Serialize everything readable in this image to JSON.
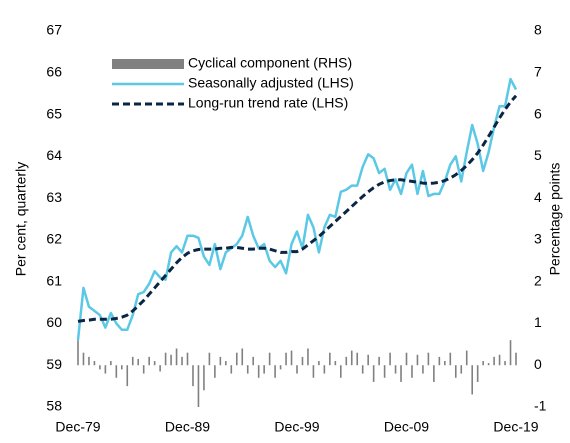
{
  "chart_data": {
    "type": "line",
    "categories": [
      "Dec-79",
      null,
      null,
      null,
      null,
      null,
      null,
      null,
      null,
      null,
      null,
      null,
      null,
      null,
      null,
      null,
      null,
      null,
      null,
      null,
      "Dec-89",
      null,
      null,
      null,
      null,
      null,
      null,
      null,
      null,
      null,
      null,
      null,
      null,
      null,
      null,
      null,
      null,
      null,
      null,
      null,
      "Dec-99",
      null,
      null,
      null,
      null,
      null,
      null,
      null,
      null,
      null,
      null,
      null,
      null,
      null,
      null,
      null,
      null,
      null,
      null,
      null,
      "Dec-09",
      null,
      null,
      null,
      null,
      null,
      null,
      null,
      null,
      null,
      null,
      null,
      null,
      null,
      null,
      null,
      null,
      null,
      null,
      null,
      "Dec-19"
    ],
    "series": [
      {
        "name": "Cyclical component (RHS)",
        "type": "bar",
        "axis": "y2",
        "color": "#808080",
        "values": [
          0.6,
          0.3,
          0.2,
          0.1,
          -0.1,
          -0.2,
          0.1,
          -0.3,
          -0.1,
          -0.5,
          0.2,
          0.15,
          -0.2,
          0.2,
          0.1,
          -0.15,
          0.3,
          0.25,
          0.4,
          0.2,
          0.3,
          -0.5,
          -1.0,
          -0.6,
          0.3,
          -0.3,
          0.2,
          0.1,
          -0.2,
          0.3,
          0.4,
          -0.2,
          0.2,
          -0.3,
          -0.2,
          0.3,
          -0.3,
          -0.1,
          0.3,
          0.35,
          -0.2,
          0.2,
          0.4,
          -0.3,
          0.1,
          -0.2,
          0.3,
          0.1,
          -0.3,
          0.2,
          0.35,
          0.3,
          -0.2,
          0.25,
          -0.4,
          0.2,
          -0.3,
          0.3,
          -0.2,
          -0.4,
          0.3,
          -0.3,
          0.25,
          -0.2,
          0.3,
          -0.4,
          0.2,
          0.1,
          0.3,
          -0.3,
          -0.2,
          0.35,
          -0.7,
          -0.4,
          0.1,
          0.05,
          0.2,
          0.25,
          0.1,
          0.6,
          0.3
        ]
      },
      {
        "name": "Seasonally adjusted (LHS)",
        "type": "line",
        "color": "#5bc8e6",
        "dash": false,
        "values": [
          59.6,
          60.85,
          60.4,
          60.3,
          60.2,
          59.9,
          60.25,
          60.0,
          59.85,
          59.85,
          60.2,
          60.7,
          60.75,
          60.95,
          61.25,
          61.1,
          61.05,
          61.7,
          61.85,
          61.7,
          62.1,
          62.1,
          62.05,
          61.6,
          61.4,
          61.9,
          61.3,
          61.7,
          61.8,
          61.9,
          62.1,
          62.55,
          62.1,
          61.8,
          61.9,
          61.5,
          61.35,
          61.5,
          61.2,
          61.9,
          62.2,
          61.8,
          62.6,
          62.3,
          61.7,
          62.3,
          62.6,
          62.55,
          63.15,
          63.2,
          63.3,
          63.3,
          63.75,
          64.05,
          63.95,
          63.6,
          63.7,
          63.2,
          63.45,
          63.1,
          63.6,
          63.8,
          63.1,
          63.65,
          63.05,
          63.1,
          63.1,
          63.4,
          63.8,
          64.0,
          63.4,
          64.1,
          64.75,
          64.3,
          63.65,
          64.1,
          64.7,
          65.2,
          65.2,
          65.85,
          65.6
        ]
      },
      {
        "name": "Long-run trend rate (LHS)",
        "type": "line",
        "color": "#0b2545",
        "dash": true,
        "values": [
          60.05,
          60.07,
          60.08,
          60.1,
          60.1,
          60.1,
          60.1,
          60.12,
          60.15,
          60.2,
          60.3,
          60.42,
          60.55,
          60.7,
          60.85,
          61.0,
          61.15,
          61.3,
          61.45,
          61.58,
          61.68,
          61.74,
          61.77,
          61.78,
          61.78,
          61.78,
          61.8,
          61.8,
          61.82,
          61.82,
          61.8,
          61.78,
          61.78,
          61.8,
          61.8,
          61.78,
          61.74,
          61.7,
          61.7,
          61.72,
          61.72,
          61.78,
          61.88,
          61.98,
          62.08,
          62.2,
          62.32,
          62.44,
          62.56,
          62.68,
          62.8,
          62.92,
          63.04,
          63.15,
          63.25,
          63.33,
          63.39,
          63.42,
          63.44,
          63.44,
          63.42,
          63.4,
          63.38,
          63.36,
          63.35,
          63.36,
          63.38,
          63.42,
          63.48,
          63.56,
          63.66,
          63.78,
          63.92,
          64.08,
          64.27,
          64.48,
          64.7,
          64.92,
          65.12,
          65.3,
          65.45
        ]
      }
    ],
    "y_label": "Per cent, quarterly",
    "y2_label": "Percentage points",
    "ylim": [
      58,
      67
    ],
    "yticks": [
      58,
      59,
      60,
      61,
      62,
      63,
      64,
      65,
      66,
      67
    ],
    "y2lim": [
      -1,
      8
    ],
    "y2ticks": [
      -1,
      0,
      1,
      2,
      3,
      4,
      5,
      6,
      7,
      8
    ],
    "legend": "top-left",
    "grid": false
  }
}
